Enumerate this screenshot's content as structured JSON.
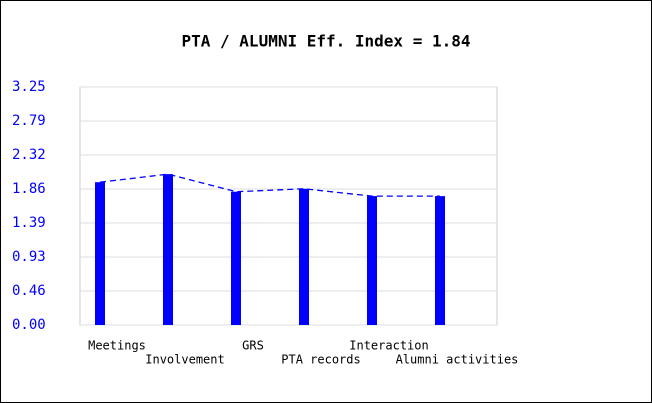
{
  "chart_data": {
    "type": "bar",
    "title": "PTA / ALUMNI Eff. Index = 1.84",
    "categories": [
      "Meetings",
      "Involvement",
      "GRS",
      "PTA records",
      "Interaction",
      "Alumni activities"
    ],
    "values": [
      1.95,
      2.06,
      1.82,
      1.86,
      1.76,
      1.76
    ],
    "color": "#0000ff",
    "line": true,
    "line_style": "dashed",
    "ylim": [
      0,
      3.25
    ],
    "yticks": [
      {
        "value": 0,
        "label": "0.00"
      },
      {
        "value": 0.4643,
        "label": "0.46"
      },
      {
        "value": 0.9286,
        "label": "0.93"
      },
      {
        "value": 1.3929,
        "label": "1.39"
      },
      {
        "value": 1.8571,
        "label": "1.86"
      },
      {
        "value": 2.3214,
        "label": "2.32"
      },
      {
        "value": 2.7857,
        "label": "2.79"
      },
      3.25
    ],
    "grid": true
  }
}
